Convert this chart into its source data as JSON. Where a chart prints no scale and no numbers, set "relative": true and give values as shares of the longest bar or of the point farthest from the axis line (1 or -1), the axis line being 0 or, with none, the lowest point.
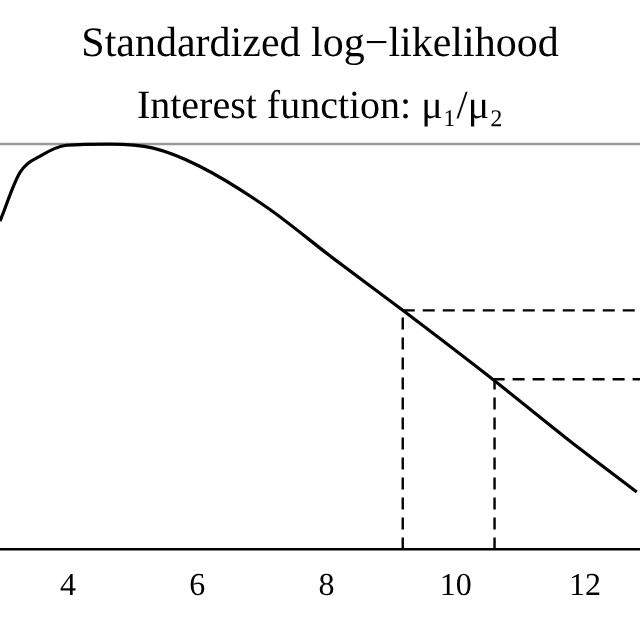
{
  "chart_data": {
    "type": "line",
    "title": "Standardized log−likelihood",
    "subtitle": "Interest function: μ₁/μ₂",
    "relative": true,
    "x": [
      2.95,
      3.26,
      3.57,
      3.98,
      4.65,
      5.32,
      6.03,
      7.06,
      8.09,
      9.18,
      10.57,
      11.7,
      12.8
    ],
    "series": [
      {
        "color": "#000000",
        "values": [
          0.81,
          0.93,
          0.97,
          0.997,
          1.0,
          0.99,
          0.946,
          0.846,
          0.72,
          0.59,
          0.42,
          0.276,
          0.142
        ]
      }
    ],
    "xlim": [
      2.95,
      12.85
    ],
    "xticks": [
      4,
      6,
      8,
      10,
      12
    ],
    "grid": false,
    "legend": false,
    "marker": "none",
    "line_style": "solid",
    "ref_lines": [
      {
        "axis": "y",
        "value": 1,
        "color": "#999999",
        "line_style": "solid"
      },
      {
        "axis": "x",
        "value": 9.18,
        "color": "#000000",
        "line_style": "dashed"
      },
      {
        "axis": "x",
        "value": 10.6,
        "color": "#000000",
        "line_style": "dashed"
      },
      {
        "axis": "y",
        "value": 0.59,
        "color": "#000000",
        "line_style": "dashed"
      },
      {
        "axis": "y",
        "value": 0.42,
        "color": "#000000",
        "line_style": "dashed"
      }
    ]
  }
}
